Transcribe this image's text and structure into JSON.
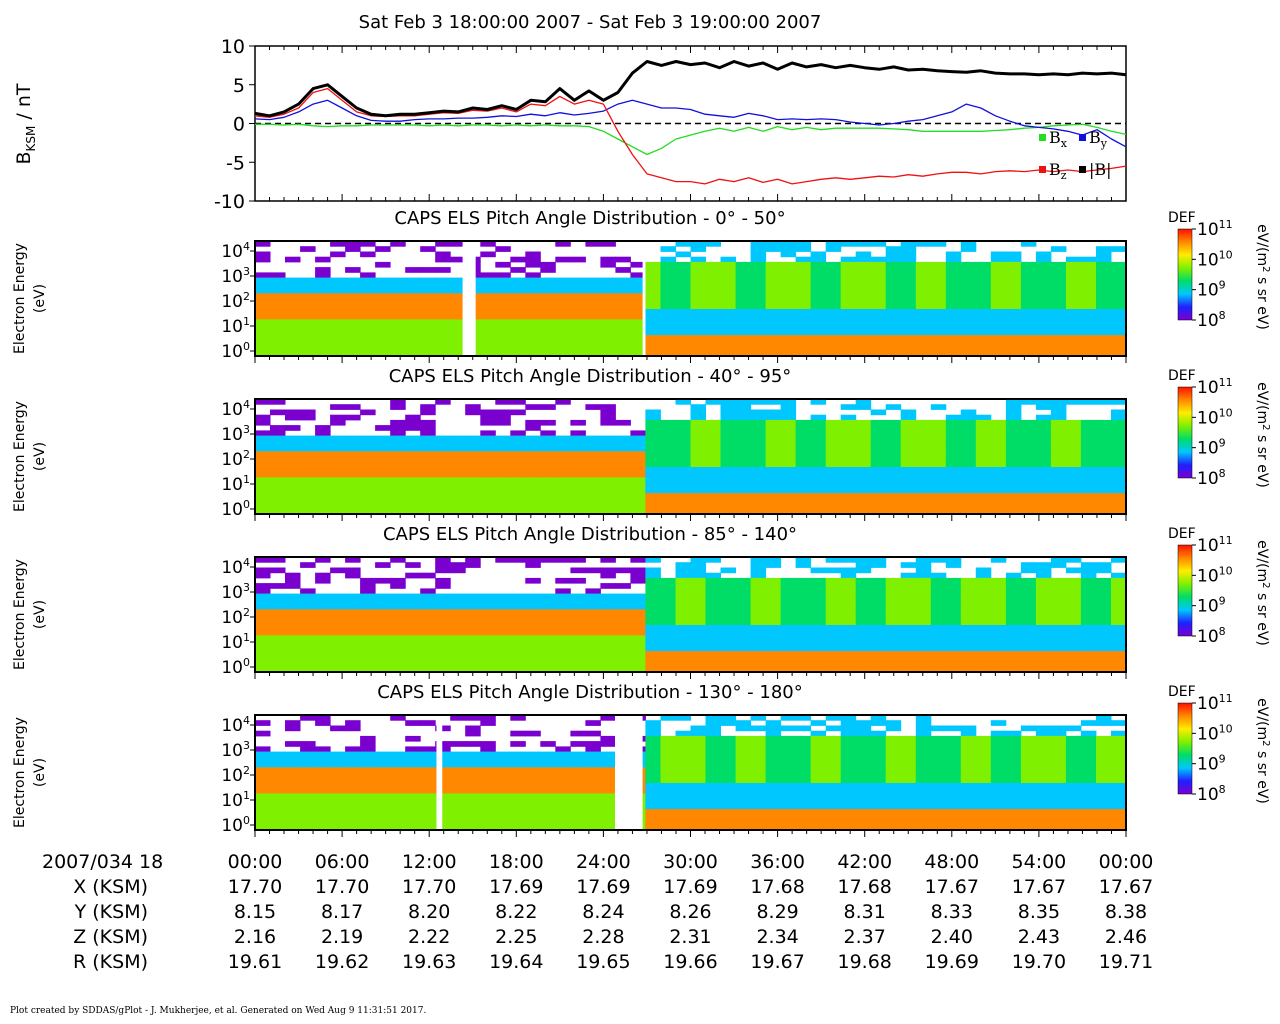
{
  "page_title": "Sat Feb 3 18:00:00 2007 - Sat Feb 3 19:00:00 2007",
  "footer": "Plot created by SDDAS/gPlot - J. Mukherjee, et al.  Generated on Wed Aug 9 11:31:51 2017.",
  "colors": {
    "bx": "#22dd22",
    "by": "#1010dd",
    "bz": "#ee1111",
    "bmag": "#000000",
    "colorbar": [
      "#ffffff",
      "#7a00d0",
      "#2020ff",
      "#00c8ff",
      "#00dd66",
      "#7ef000",
      "#ffee00",
      "#ff8800",
      "#ff1100"
    ]
  },
  "chart_data": [
    {
      "type": "line",
      "ylabel_main": "B",
      "ylabel_sub": "KSM",
      "ylabel_unit": " / nT",
      "ylim": [
        -10,
        10
      ],
      "yticks": [
        "10",
        "5",
        "0",
        "-5",
        "-10"
      ],
      "xlim_minutes": [
        0,
        60
      ],
      "zero_line": "dashed",
      "legend_placement": "bottom-right",
      "legend": [
        {
          "label": "B",
          "sub": "x",
          "color": "#22dd22"
        },
        {
          "label": "B",
          "sub": "y",
          "color": "#1010dd"
        },
        {
          "label": "B",
          "sub": "z",
          "color": "#ee1111"
        },
        {
          "label": "|B|",
          "sub": "",
          "color": "#000000"
        }
      ],
      "x": [
        0,
        1,
        2,
        3,
        4,
        5,
        6,
        7,
        8,
        9,
        10,
        11,
        12,
        13,
        14,
        15,
        16,
        17,
        18,
        19,
        20,
        21,
        22,
        23,
        24,
        25,
        26,
        27,
        28,
        29,
        30,
        31,
        32,
        33,
        34,
        35,
        36,
        37,
        38,
        39,
        40,
        41,
        42,
        43,
        44,
        45,
        46,
        47,
        48,
        49,
        50,
        51,
        52,
        53,
        54,
        55,
        56,
        57,
        58,
        59,
        60
      ],
      "series": [
        {
          "key": "bx",
          "values": [
            -0.1,
            -0.1,
            -0.2,
            -0.1,
            -0.3,
            -0.4,
            -0.3,
            -0.3,
            -0.2,
            -0.2,
            -0.2,
            -0.2,
            -0.3,
            -0.2,
            -0.3,
            -0.2,
            -0.2,
            -0.3,
            -0.2,
            -0.3,
            -0.2,
            -0.3,
            -0.3,
            -0.4,
            -1.0,
            -2.0,
            -3.0,
            -4.0,
            -3.2,
            -2.0,
            -1.5,
            -1.0,
            -0.6,
            -1.0,
            -0.5,
            -1.0,
            -0.4,
            -0.8,
            -0.5,
            -0.8,
            -0.6,
            -0.6,
            -0.6,
            -0.6,
            -0.7,
            -0.8,
            -1.0,
            -1.0,
            -1.0,
            -1.0,
            -1.0,
            -0.9,
            -0.8,
            -0.6,
            -0.5,
            -0.3,
            -0.2,
            -0.1,
            -0.5,
            -1.0,
            -1.4
          ]
        },
        {
          "key": "by",
          "values": [
            0.6,
            0.5,
            0.8,
            1.5,
            2.5,
            3.0,
            2.0,
            1.0,
            0.4,
            0.3,
            0.3,
            0.5,
            0.6,
            0.6,
            0.7,
            0.7,
            0.8,
            1.0,
            0.9,
            1.2,
            1.0,
            1.4,
            1.1,
            1.3,
            1.6,
            2.5,
            3.0,
            2.5,
            2.0,
            2.0,
            1.8,
            1.2,
            1.0,
            0.8,
            1.3,
            1.0,
            0.5,
            0.6,
            0.5,
            0.6,
            0.5,
            0.2,
            0.0,
            -0.2,
            0.0,
            0.3,
            0.5,
            1.0,
            1.5,
            2.5,
            2.0,
            1.0,
            0.3,
            -0.3,
            -0.5,
            -0.7,
            -1.0,
            -1.5,
            -0.8,
            -2.0,
            -3.0
          ]
        },
        {
          "key": "bz",
          "values": [
            1.0,
            0.8,
            1.2,
            2.0,
            4.0,
            4.5,
            3.0,
            1.5,
            1.0,
            0.9,
            1.0,
            1.0,
            1.2,
            1.4,
            1.3,
            1.7,
            1.6,
            2.0,
            1.5,
            2.5,
            2.3,
            3.5,
            2.5,
            3.0,
            2.5,
            -1.0,
            -4.0,
            -6.5,
            -7.0,
            -7.5,
            -7.5,
            -7.8,
            -7.2,
            -7.5,
            -7.0,
            -7.6,
            -7.2,
            -7.8,
            -7.5,
            -7.2,
            -7.0,
            -7.2,
            -7.0,
            -6.8,
            -6.9,
            -6.6,
            -6.8,
            -6.5,
            -6.3,
            -6.3,
            -6.5,
            -6.2,
            -6.1,
            -6.2,
            -6.0,
            -6.2,
            -6.0,
            -6.2,
            -6.0,
            -5.8,
            -5.5
          ]
        },
        {
          "key": "bmag",
          "values": [
            1.3,
            1.0,
            1.5,
            2.5,
            4.5,
            5.0,
            3.5,
            2.0,
            1.2,
            1.0,
            1.2,
            1.2,
            1.4,
            1.6,
            1.5,
            2.0,
            1.8,
            2.3,
            1.8,
            3.0,
            2.8,
            4.5,
            3.0,
            4.2,
            3.0,
            4.0,
            6.5,
            8.0,
            7.5,
            8.0,
            7.6,
            7.8,
            7.2,
            8.0,
            7.4,
            7.8,
            7.0,
            7.8,
            7.3,
            7.6,
            7.2,
            7.5,
            7.2,
            7.0,
            7.3,
            6.9,
            7.0,
            6.8,
            6.7,
            6.6,
            6.8,
            6.5,
            6.4,
            6.4,
            6.3,
            6.4,
            6.3,
            6.5,
            6.4,
            6.5,
            6.3
          ]
        }
      ]
    },
    {
      "type": "heatmap",
      "title": "CAPS ELS Pitch Angle Distribution - 0° - 50°",
      "ylabel": "Electron Energy",
      "yunit": "(eV)",
      "ytick_exponents": [
        "4",
        "3",
        "2",
        "1",
        "0"
      ],
      "ylim_log10": [
        -0.2,
        4.4
      ],
      "xlim_minutes": [
        0,
        60
      ],
      "data_gaps_minutes": [
        [
          14.3,
          15.2
        ],
        [
          26.7,
          26.9
        ]
      ],
      "colorbar": {
        "label": "DEF",
        "units": "eV/(m",
        "units_sup": "2",
        "units_tail": " s sr eV)",
        "tick_exponents": [
          "11",
          "10",
          "9",
          "8"
        ],
        "range_log10": [
          8,
          11
        ]
      }
    },
    {
      "type": "heatmap",
      "title": "CAPS ELS Pitch Angle Distribution - 40° - 95°",
      "ylabel": "Electron Energy",
      "yunit": "(eV)",
      "ytick_exponents": [
        "4",
        "3",
        "2",
        "1",
        "0"
      ],
      "ylim_log10": [
        -0.2,
        4.4
      ],
      "xlim_minutes": [
        0,
        60
      ],
      "data_gaps_minutes": [],
      "colorbar": {
        "label": "DEF",
        "units": "eV/(m",
        "units_sup": "2",
        "units_tail": " s sr eV)",
        "tick_exponents": [
          "11",
          "10",
          "9",
          "8"
        ],
        "range_log10": [
          8,
          11
        ]
      }
    },
    {
      "type": "heatmap",
      "title": "CAPS ELS Pitch Angle Distribution - 85° - 140°",
      "ylabel": "Electron Energy",
      "yunit": "(eV)",
      "ytick_exponents": [
        "4",
        "3",
        "2",
        "1",
        "0"
      ],
      "ylim_log10": [
        -0.2,
        4.4
      ],
      "xlim_minutes": [
        0,
        60
      ],
      "data_gaps_minutes": [],
      "colorbar": {
        "label": "DEF",
        "units": "eV/(m",
        "units_sup": "2",
        "units_tail": " s sr eV)",
        "tick_exponents": [
          "11",
          "10",
          "9",
          "8"
        ],
        "range_log10": [
          8,
          11
        ]
      }
    },
    {
      "type": "heatmap",
      "title": "CAPS ELS Pitch Angle Distribution - 130° - 180°",
      "ylabel": "Electron Energy",
      "yunit": "(eV)",
      "ytick_exponents": [
        "4",
        "3",
        "2",
        "1",
        "0"
      ],
      "ylim_log10": [
        -0.2,
        4.4
      ],
      "xlim_minutes": [
        0,
        60
      ],
      "data_gaps_minutes": [
        [
          12.5,
          12.9
        ],
        [
          24.8,
          26.7
        ]
      ],
      "colorbar": {
        "label": "DEF",
        "units": "eV/(m",
        "units_sup": "2",
        "units_tail": " s sr eV)",
        "tick_exponents": [
          "11",
          "10",
          "9",
          "8"
        ],
        "range_log10": [
          8,
          11
        ]
      }
    }
  ],
  "ephemeris": {
    "header": "2007/034 18",
    "times": [
      "00:00",
      "06:00",
      "12:00",
      "18:00",
      "24:00",
      "30:00",
      "36:00",
      "42:00",
      "48:00",
      "54:00",
      "00:00"
    ],
    "rows": [
      {
        "label": "X (KSM)",
        "values": [
          "17.70",
          "17.70",
          "17.70",
          "17.69",
          "17.69",
          "17.69",
          "17.68",
          "17.68",
          "17.67",
          "17.67",
          "17.67"
        ]
      },
      {
        "label": "Y (KSM)",
        "values": [
          "8.15",
          "8.17",
          "8.20",
          "8.22",
          "8.24",
          "8.26",
          "8.29",
          "8.31",
          "8.33",
          "8.35",
          "8.38"
        ]
      },
      {
        "label": "Z (KSM)",
        "values": [
          "2.16",
          "2.19",
          "2.22",
          "2.25",
          "2.28",
          "2.31",
          "2.34",
          "2.37",
          "2.40",
          "2.43",
          "2.46"
        ]
      },
      {
        "label": "R (KSM)",
        "values": [
          "19.61",
          "19.62",
          "19.63",
          "19.64",
          "19.65",
          "19.66",
          "19.67",
          "19.68",
          "19.69",
          "19.70",
          "19.71"
        ]
      }
    ]
  }
}
